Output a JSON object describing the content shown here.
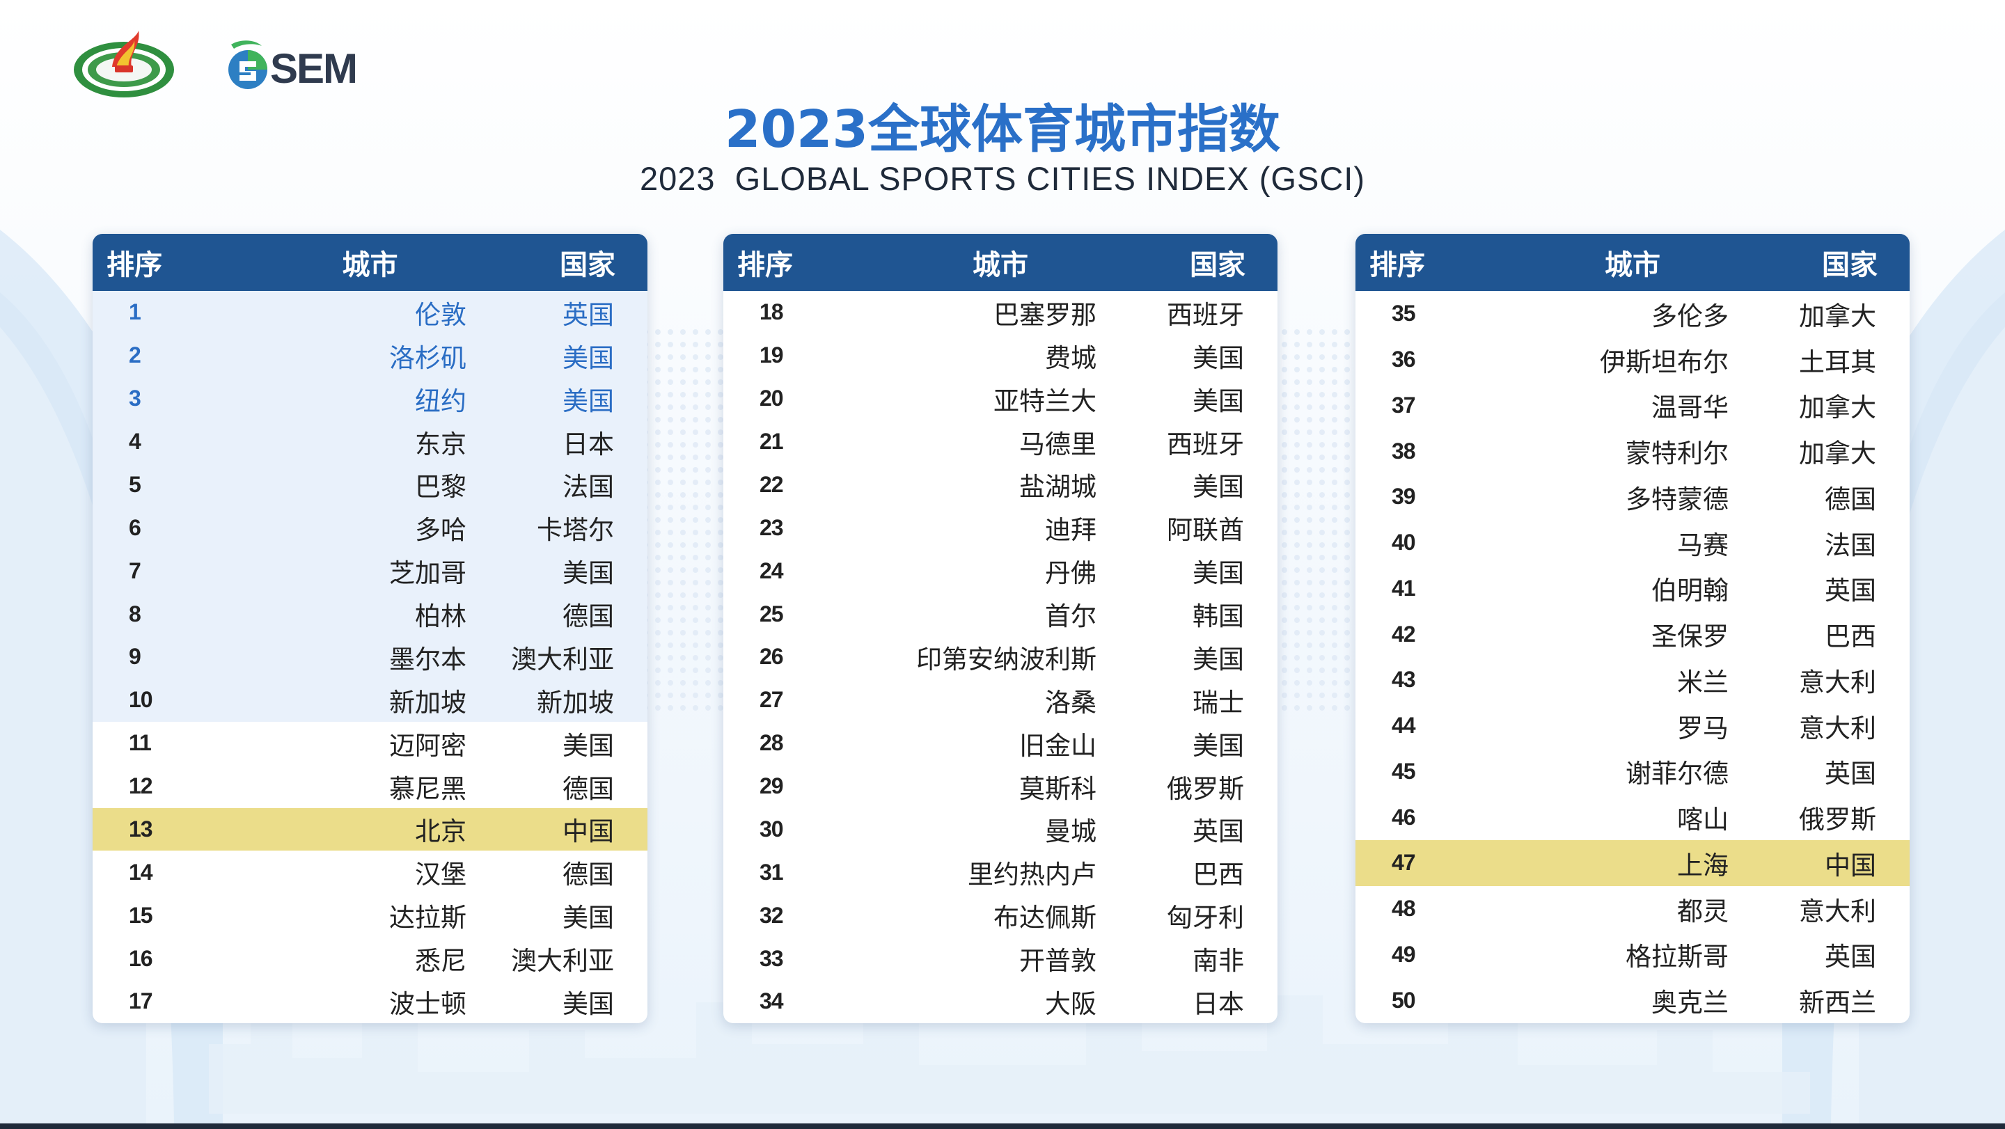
{
  "title_cn": "2023全球体育城市指数",
  "title_en": "2023  GLOBAL SPORTS CITIES INDEX (GSCI)",
  "logo_sem_text": "SEM",
  "headers": {
    "rank": "排序",
    "city": "城市",
    "country": "国家"
  },
  "colors": {
    "header_bg": "#1f5592",
    "title": "#2a70c8",
    "podium_text": "#2a6dc4",
    "top10_bg": "#e9f1fb",
    "china_highlight": "#ebdd8a"
  },
  "tables": [
    {
      "rows": [
        {
          "rank": "1",
          "city": "伦敦",
          "country": "英国"
        },
        {
          "rank": "2",
          "city": "洛杉矶",
          "country": "美国"
        },
        {
          "rank": "3",
          "city": "纽约",
          "country": "美国"
        },
        {
          "rank": "4",
          "city": "东京",
          "country": "日本"
        },
        {
          "rank": "5",
          "city": "巴黎",
          "country": "法国"
        },
        {
          "rank": "6",
          "city": "多哈",
          "country": "卡塔尔"
        },
        {
          "rank": "7",
          "city": "芝加哥",
          "country": "美国"
        },
        {
          "rank": "8",
          "city": "柏林",
          "country": "德国"
        },
        {
          "rank": "9",
          "city": "墨尔本",
          "country": "澳大利亚"
        },
        {
          "rank": "10",
          "city": "新加坡",
          "country": "新加坡"
        },
        {
          "rank": "11",
          "city": "迈阿密",
          "country": "美国"
        },
        {
          "rank": "12",
          "city": "慕尼黑",
          "country": "德国"
        },
        {
          "rank": "13",
          "city": "北京",
          "country": "中国"
        },
        {
          "rank": "14",
          "city": "汉堡",
          "country": "德国"
        },
        {
          "rank": "15",
          "city": "达拉斯",
          "country": "美国"
        },
        {
          "rank": "16",
          "city": "悉尼",
          "country": "澳大利亚"
        },
        {
          "rank": "17",
          "city": "波士顿",
          "country": "美国"
        }
      ]
    },
    {
      "rows": [
        {
          "rank": "18",
          "city": "巴塞罗那",
          "country": "西班牙"
        },
        {
          "rank": "19",
          "city": "费城",
          "country": "美国"
        },
        {
          "rank": "20",
          "city": "亚特兰大",
          "country": "美国"
        },
        {
          "rank": "21",
          "city": "马德里",
          "country": "西班牙"
        },
        {
          "rank": "22",
          "city": "盐湖城",
          "country": "美国"
        },
        {
          "rank": "23",
          "city": "迪拜",
          "country": "阿联酋"
        },
        {
          "rank": "24",
          "city": "丹佛",
          "country": "美国"
        },
        {
          "rank": "25",
          "city": "首尔",
          "country": "韩国"
        },
        {
          "rank": "26",
          "city": "印第安纳波利斯",
          "country": "美国"
        },
        {
          "rank": "27",
          "city": "洛桑",
          "country": "瑞士"
        },
        {
          "rank": "28",
          "city": "旧金山",
          "country": "美国"
        },
        {
          "rank": "29",
          "city": "莫斯科",
          "country": "俄罗斯"
        },
        {
          "rank": "30",
          "city": "曼城",
          "country": "英国"
        },
        {
          "rank": "31",
          "city": "里约热内卢",
          "country": "巴西"
        },
        {
          "rank": "32",
          "city": "布达佩斯",
          "country": "匈牙利"
        },
        {
          "rank": "33",
          "city": "开普敦",
          "country": "南非"
        },
        {
          "rank": "34",
          "city": "大阪",
          "country": "日本"
        }
      ]
    },
    {
      "rows": [
        {
          "rank": "35",
          "city": "多伦多",
          "country": "加拿大"
        },
        {
          "rank": "36",
          "city": "伊斯坦布尔",
          "country": "土耳其"
        },
        {
          "rank": "37",
          "city": "温哥华",
          "country": "加拿大"
        },
        {
          "rank": "38",
          "city": "蒙特利尔",
          "country": "加拿大"
        },
        {
          "rank": "39",
          "city": "多特蒙德",
          "country": "德国"
        },
        {
          "rank": "40",
          "city": "马赛",
          "country": "法国"
        },
        {
          "rank": "41",
          "city": "伯明翰",
          "country": "英国"
        },
        {
          "rank": "42",
          "city": "圣保罗",
          "country": "巴西"
        },
        {
          "rank": "43",
          "city": "米兰",
          "country": "意大利"
        },
        {
          "rank": "44",
          "city": "罗马",
          "country": "意大利"
        },
        {
          "rank": "45",
          "city": "谢菲尔德",
          "country": "英国"
        },
        {
          "rank": "46",
          "city": "喀山",
          "country": "俄罗斯"
        },
        {
          "rank": "47",
          "city": "上海",
          "country": "中国"
        },
        {
          "rank": "48",
          "city": "都灵",
          "country": "意大利"
        },
        {
          "rank": "49",
          "city": "格拉斯哥",
          "country": "英国"
        },
        {
          "rank": "50",
          "city": "奥克兰",
          "country": "新西兰"
        }
      ]
    }
  ]
}
